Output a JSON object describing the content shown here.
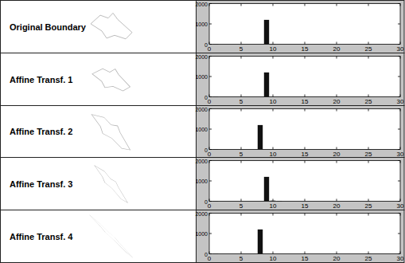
{
  "chart_data": [
    {
      "type": "bar",
      "title": "Original Boundary",
      "x": [
        1,
        9,
        10,
        25
      ],
      "values": [
        15,
        1200,
        20,
        15
      ],
      "color": "#111111",
      "xlim": [
        0,
        30
      ],
      "xticks": [
        0,
        5,
        10,
        15,
        20,
        25,
        30
      ],
      "ylim": [
        0,
        2000
      ],
      "yticks": [
        0,
        1000,
        2000
      ],
      "grid": false
    },
    {
      "type": "bar",
      "title": "Affine Transf. 1",
      "x": [
        1,
        9,
        25
      ],
      "values": [
        15,
        1200,
        10
      ],
      "color": "#111111",
      "xlim": [
        0,
        30
      ],
      "xticks": [
        0,
        5,
        10,
        15,
        20,
        25,
        30
      ],
      "ylim": [
        0,
        2000
      ],
      "yticks": [
        0,
        1000,
        2000
      ],
      "grid": false
    },
    {
      "type": "bar",
      "title": "Affine Transf. 2",
      "x": [
        1,
        8,
        25
      ],
      "values": [
        15,
        1200,
        10
      ],
      "color": "#111111",
      "xlim": [
        0,
        30
      ],
      "xticks": [
        0,
        5,
        10,
        15,
        20,
        25,
        30
      ],
      "ylim": [
        0,
        2000
      ],
      "yticks": [
        0,
        1000,
        2000
      ],
      "grid": false
    },
    {
      "type": "bar",
      "title": "Affine Transf. 3",
      "x": [
        1,
        9,
        10,
        11,
        25
      ],
      "values": [
        15,
        1200,
        30,
        20,
        10
      ],
      "color": "#111111",
      "xlim": [
        0,
        30
      ],
      "xticks": [
        0,
        5,
        10,
        15,
        20,
        25,
        30
      ],
      "ylim": [
        0,
        2000
      ],
      "yticks": [
        0,
        1000,
        2000
      ],
      "grid": false
    },
    {
      "type": "bar",
      "title": "Affine Transf. 4",
      "x": [
        1,
        8,
        25
      ],
      "values": [
        15,
        1200,
        10
      ],
      "color": "#111111",
      "xlim": [
        0,
        30
      ],
      "xticks": [
        0,
        5,
        10,
        15,
        20,
        25,
        30
      ],
      "ylim": [
        0,
        2000
      ],
      "yticks": [
        0,
        1000,
        2000
      ],
      "grid": false
    }
  ]
}
